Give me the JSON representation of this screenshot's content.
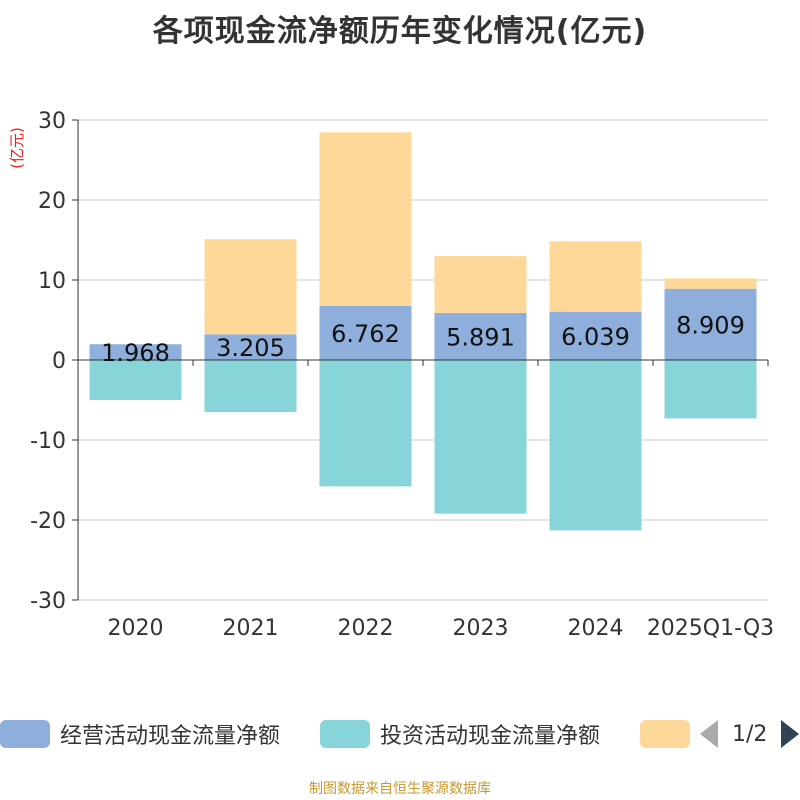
{
  "title": "各项现金流净额历年变化情况(亿元)",
  "footer": "制图数据来自恒生聚源数据库",
  "legend": {
    "items": [
      {
        "label": "经营活动现金流量净额",
        "color": "#8eaedb"
      },
      {
        "label": "投资活动现金流量净额",
        "color": "#87d5d8"
      },
      {
        "label": "",
        "color": "#fdd898"
      }
    ],
    "pager": "1/2"
  },
  "chart_data": {
    "type": "bar",
    "stacked": true,
    "unit": "(亿元)",
    "categories": [
      "2020",
      "2021",
      "2022",
      "2023",
      "2024",
      "2025Q1-Q3"
    ],
    "ylim": [
      -30,
      30
    ],
    "yticks": [
      30,
      20,
      10,
      0,
      -10,
      -20,
      -30
    ],
    "grid": true,
    "series": [
      {
        "name": "经营活动现金流量净额",
        "color": "#8eaedb",
        "values": [
          1.968,
          3.205,
          6.762,
          5.891,
          6.039,
          8.909
        ],
        "labels": [
          "1.968",
          "3.205",
          "6.762",
          "5.891",
          "6.039",
          "8.909"
        ]
      },
      {
        "name": "投资活动现金流量净额",
        "color": "#87d5d8",
        "values": [
          -5.0,
          -6.5,
          -15.8,
          -19.2,
          -21.3,
          -7.3
        ]
      },
      {
        "name": "",
        "color": "#fdd898",
        "values": [
          0,
          11.9,
          21.7,
          7.1,
          8.8,
          1.3
        ]
      }
    ]
  }
}
